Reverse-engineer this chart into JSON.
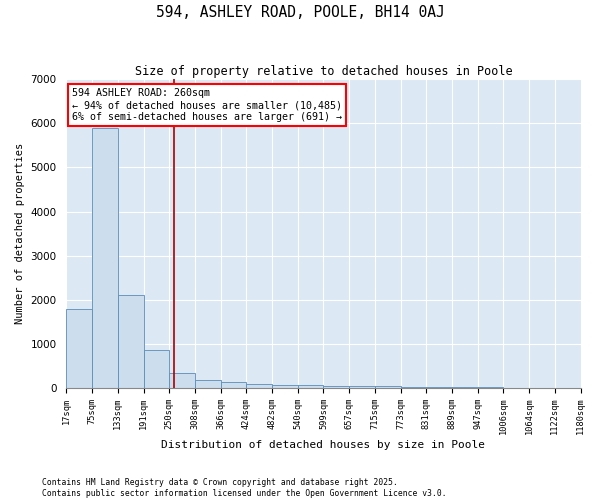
{
  "title": "594, ASHLEY ROAD, POOLE, BH14 0AJ",
  "subtitle": "Size of property relative to detached houses in Poole",
  "xlabel": "Distribution of detached houses by size in Poole",
  "ylabel": "Number of detached properties",
  "bin_labels": [
    "17sqm",
    "75sqm",
    "133sqm",
    "191sqm",
    "250sqm",
    "308sqm",
    "366sqm",
    "424sqm",
    "482sqm",
    "540sqm",
    "599sqm",
    "657sqm",
    "715sqm",
    "773sqm",
    "831sqm",
    "889sqm",
    "947sqm",
    "1006sqm",
    "1064sqm",
    "1122sqm",
    "1180sqm"
  ],
  "bar_heights": [
    1800,
    5900,
    2100,
    850,
    340,
    190,
    130,
    100,
    75,
    65,
    55,
    45,
    35,
    30,
    22,
    18,
    12,
    8,
    6,
    4,
    0
  ],
  "bar_color": "#ccdded",
  "bar_edge_color": "#5b8db8",
  "annotation_title": "594 ASHLEY ROAD: 260sqm",
  "annotation_line1": "← 94% of detached houses are smaller (10,485)",
  "annotation_line2": "6% of semi-detached houses are larger (691) →",
  "annotation_box_color": "white",
  "annotation_box_edge": "red",
  "vline_color": "#aa0000",
  "ylim": [
    0,
    7000
  ],
  "background_color": "#dce9f5",
  "grid_color": "white",
  "footer_line1": "Contains HM Land Registry data © Crown copyright and database right 2025.",
  "footer_line2": "Contains public sector information licensed under the Open Government Licence v3.0."
}
